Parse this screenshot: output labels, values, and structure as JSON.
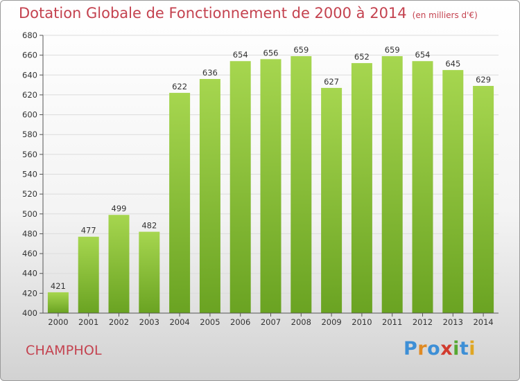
{
  "chart_data": {
    "type": "bar",
    "title": "Dotation Globale de Fonctionnement de 2000 à 2014",
    "subtitle": "(en milliers d'€)",
    "categories": [
      "2000",
      "2001",
      "2002",
      "2003",
      "2004",
      "2005",
      "2006",
      "2007",
      "2008",
      "2009",
      "2010",
      "2011",
      "2012",
      "2013",
      "2014"
    ],
    "values": [
      421,
      477,
      499,
      482,
      622,
      636,
      654,
      656,
      659,
      627,
      652,
      659,
      654,
      645,
      629
    ],
    "ylim": [
      400,
      680
    ],
    "yticks": [
      400,
      420,
      440,
      460,
      480,
      500,
      520,
      540,
      560,
      580,
      600,
      620,
      640,
      660,
      680
    ],
    "grid": true,
    "bar_color": "#7fb92e",
    "bar_color_top": "#a6d64f"
  },
  "footer": {
    "commune": "CHAMPHOL",
    "logo": "Proxiti"
  }
}
